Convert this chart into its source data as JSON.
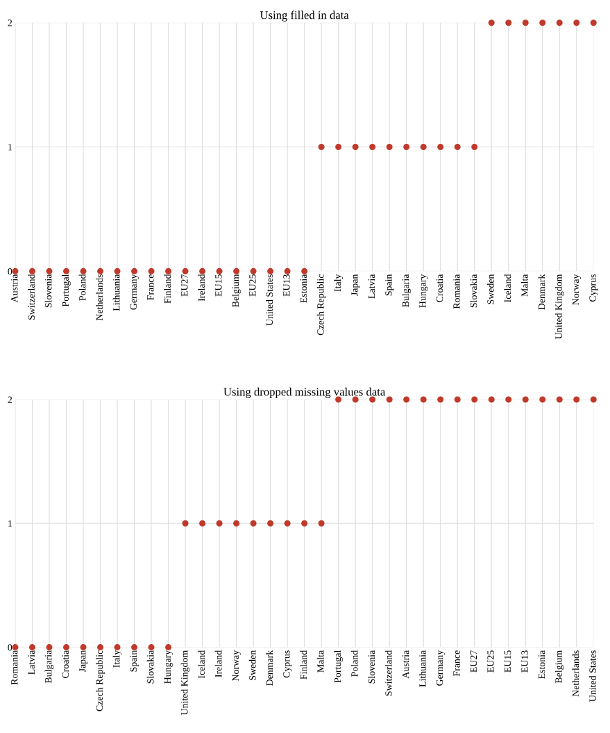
{
  "chart_data": [
    {
      "type": "scatter",
      "title": "Using filled in data",
      "categories": [
        "Austria",
        "Switzerland",
        "Slovenia",
        "Portugal",
        "Poland",
        "Netherlands",
        "Lithuania",
        "Germany",
        "France",
        "Finland",
        "EU27",
        "Ireland",
        "EU15",
        "Belgium",
        "EU25",
        "United States",
        "EU13",
        "Estonia",
        "Czech Republic",
        "Italy",
        "Japan",
        "Latvia",
        "Spain",
        "Bulgaria",
        "Hungary",
        "Croatia",
        "Romania",
        "Slovakia",
        "Sweden",
        "Iceland",
        "Malta",
        "Denmark",
        "United Kingdom",
        "Norway",
        "Cyprus"
      ],
      "values": [
        0,
        0,
        0,
        0,
        0,
        0,
        0,
        0,
        0,
        0,
        0,
        0,
        0,
        0,
        0,
        0,
        0,
        0,
        1,
        1,
        1,
        1,
        1,
        1,
        1,
        1,
        1,
        1,
        2,
        2,
        2,
        2,
        2,
        2,
        2
      ],
      "color": "#c0392b",
      "ylim": [
        0,
        2
      ],
      "yticks": [
        0,
        1,
        2
      ],
      "grid": true,
      "marker": "circle"
    },
    {
      "type": "scatter",
      "title": "Using dropped missing values data",
      "categories": [
        "Romania",
        "Latvia",
        "Bulgaria",
        "Croatia",
        "Japan",
        "Czech Republic",
        "Italy",
        "Spain",
        "Slovakia",
        "Hungary",
        "United Kingdom",
        "Iceland",
        "Ireland",
        "Norway",
        "Sweden",
        "Denmark",
        "Cyprus",
        "Finland",
        "Malta",
        "Portugal",
        "Poland",
        "Slovenia",
        "Switzerland",
        "Austria",
        "Lithuania",
        "Germany",
        "France",
        "EU27",
        "EU25",
        "EU15",
        "EU13",
        "Estonia",
        "Belgium",
        "Netherlands",
        "United States"
      ],
      "values": [
        0,
        0,
        0,
        0,
        0,
        0,
        0,
        0,
        0,
        0,
        1,
        1,
        1,
        1,
        1,
        1,
        1,
        1,
        1,
        2,
        2,
        2,
        2,
        2,
        2,
        2,
        2,
        2,
        2,
        2,
        2,
        2,
        2,
        2,
        2
      ],
      "color": "#c0392b",
      "ylim": [
        0,
        2
      ],
      "yticks": [
        0,
        1,
        2
      ],
      "grid": true,
      "marker": "circle"
    }
  ]
}
